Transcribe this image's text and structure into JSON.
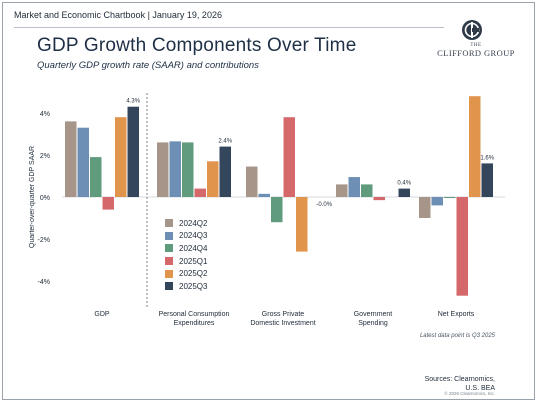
{
  "header": {
    "chartbook": "Market and Economic Chartbook | January 19, 2026",
    "title": "GDP Growth Components Over Time",
    "subtitle": "Quarterly GDP growth rate (SAAR) and contributions"
  },
  "logo": {
    "the": "THE",
    "name": "CLIFFORD GROUP"
  },
  "chart_data": {
    "type": "bar",
    "title": "GDP Growth Components Over Time",
    "subtitle": "Quarterly GDP growth rate (SAAR) and contributions",
    "ylabel": "Quarter-over-quarter GDP SAAR",
    "xlabel": "",
    "ylim": [
      -4.8,
      5.0
    ],
    "yticks": [
      4,
      2,
      0,
      -2,
      -4
    ],
    "ytick_labels": [
      "4%",
      "2%",
      "0%",
      "-2%",
      "-4%"
    ],
    "grid": false,
    "legend_position": "center-left",
    "categories": [
      [
        "GDP"
      ],
      [
        "Personal Consumption",
        "Expenditures"
      ],
      [
        "Gross Private",
        "Domestic Investment"
      ],
      [
        "Government",
        "Spending"
      ],
      [
        "Net Exports"
      ]
    ],
    "series": [
      {
        "name": "2024Q2",
        "color": "#a8958a",
        "values": [
          3.6,
          2.6,
          1.45,
          0.6,
          -1.0
        ]
      },
      {
        "name": "2024Q3",
        "color": "#6e8fb5",
        "values": [
          3.3,
          2.65,
          0.15,
          0.95,
          -0.4
        ]
      },
      {
        "name": "2024Q4",
        "color": "#5f9b7c",
        "values": [
          1.9,
          2.6,
          -1.2,
          0.6,
          -0.05
        ]
      },
      {
        "name": "2025Q1",
        "color": "#d4686a",
        "values": [
          -0.6,
          0.4,
          3.8,
          -0.15,
          -4.7
        ]
      },
      {
        "name": "2025Q2",
        "color": "#e0944c",
        "values": [
          3.8,
          1.7,
          -2.6,
          0.0,
          4.8
        ]
      },
      {
        "name": "2025Q3",
        "color": "#34465c",
        "values": [
          4.3,
          2.4,
          0.0,
          0.4,
          1.6
        ]
      }
    ],
    "data_labels": [
      "4.3%",
      "2.4%",
      "-0.0%",
      "0.4%",
      "1.6%"
    ],
    "footnote": "Latest data point is Q3 2025"
  },
  "footer": {
    "source_line1": "Sources: Clearnomics,",
    "source_line2": "U.S. BEA",
    "copyright": "© 2026 Clearnomics, Inc."
  }
}
